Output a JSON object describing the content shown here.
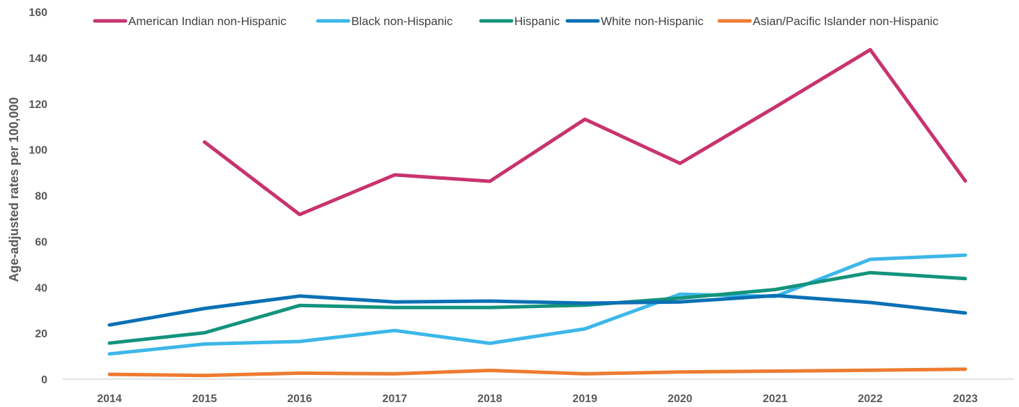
{
  "chart_data": {
    "type": "line",
    "title": "",
    "xlabel": "",
    "ylabel": "Age-adjusted rates per 100,000",
    "x": [
      "2014",
      "2015",
      "2016",
      "2017",
      "2018",
      "2019",
      "2020",
      "2021",
      "2022",
      "2023"
    ],
    "ylim": [
      0,
      160
    ],
    "yticks": [
      0,
      20,
      40,
      60,
      80,
      100,
      120,
      140,
      160
    ],
    "grid": false,
    "legend_position": "top",
    "series": [
      {
        "name": "American Indian non-Hispanic",
        "color": "#C8336E",
        "values": [
          null,
          103.3,
          71.7,
          89.0,
          86.2,
          113.2,
          94.0,
          118.5,
          143.5,
          86.3
        ]
      },
      {
        "name": "Black non-Hispanic",
        "color": "#3DB7E9",
        "values": [
          11.0,
          15.3,
          16.4,
          21.2,
          15.6,
          21.9,
          37.0,
          36.0,
          52.2,
          54.0
        ]
      },
      {
        "name": "Hispanic",
        "color": "#14937C",
        "values": [
          15.7,
          20.2,
          32.1,
          31.2,
          31.2,
          32.2,
          35.3,
          39.0,
          46.4,
          43.8
        ]
      },
      {
        "name": "White non-Hispanic",
        "color": "#0A70B5",
        "values": [
          23.6,
          30.8,
          36.2,
          33.6,
          34.0,
          33.1,
          33.6,
          36.4,
          33.4,
          28.8
        ]
      },
      {
        "name": "Asian/Pacific Islander non-Hispanic",
        "color": "#EE7B30",
        "values": [
          2.1,
          1.6,
          2.6,
          2.3,
          3.8,
          2.3,
          3.1,
          3.5,
          3.9,
          4.3
        ]
      }
    ]
  }
}
